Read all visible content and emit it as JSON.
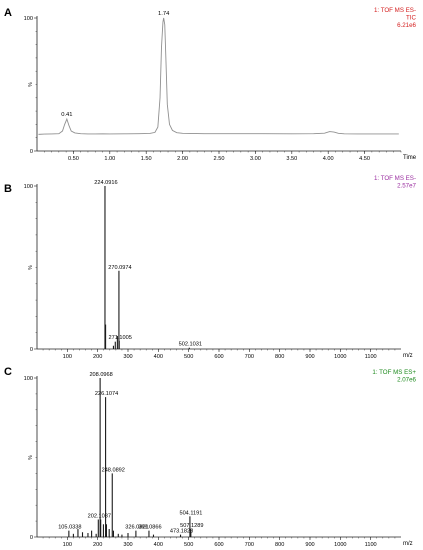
{
  "colors": {
    "chromatogram": "#909090",
    "spectrum": "#1a1a1a",
    "axis": "#222222",
    "tic_info": "#d42020",
    "esneg_info": "#9b2fa0",
    "espos_info": "#1e8a1e"
  },
  "chart_data": [
    {
      "type": "line",
      "panel_label": "A",
      "info_lines": [
        "1: TOF MS ES-",
        "TIC",
        "6.21e6"
      ],
      "xlabel": "Time",
      "ylabel": "%",
      "xlim": [
        0.0,
        5.0
      ],
      "ylim": [
        0,
        100
      ],
      "xticks": [
        0.5,
        1.0,
        1.5,
        2.0,
        2.5,
        3.0,
        3.5,
        4.0,
        4.5
      ],
      "xtick_labels": [
        "0.50",
        "1.00",
        "1.50",
        "2.00",
        "2.50",
        "3.00",
        "3.50",
        "4.00",
        "4.50"
      ],
      "yticks": [
        0,
        100
      ],
      "ytick_labels": [
        "0",
        "100"
      ],
      "x": [
        0.02,
        0.1,
        0.2,
        0.3,
        0.35,
        0.38,
        0.41,
        0.44,
        0.47,
        0.52,
        0.6,
        0.7,
        0.8,
        0.9,
        1.0,
        1.2,
        1.4,
        1.55,
        1.62,
        1.66,
        1.69,
        1.71,
        1.73,
        1.74,
        1.755,
        1.77,
        1.79,
        1.82,
        1.86,
        1.92,
        2.0,
        2.3,
        2.7,
        3.1,
        3.5,
        3.8,
        3.95,
        4.02,
        4.08,
        4.14,
        4.22,
        4.4,
        4.7,
        4.97
      ],
      "y": [
        12.5,
        12.7,
        12.8,
        13.0,
        15.0,
        20.0,
        24.0,
        19.0,
        15.0,
        13.6,
        13.0,
        12.8,
        12.8,
        12.9,
        12.8,
        12.9,
        13.0,
        13.2,
        14.0,
        18.0,
        40.0,
        78.0,
        97.0,
        100.0,
        95.0,
        70.0,
        35.0,
        20.0,
        15.5,
        13.8,
        13.3,
        13.0,
        13.0,
        13.0,
        12.9,
        13.0,
        13.4,
        14.6,
        14.2,
        13.3,
        12.9,
        12.8,
        12.8,
        12.8
      ],
      "peak_labels": [
        {
          "x": 0.41,
          "y": 24,
          "text": "0.41"
        },
        {
          "x": 1.74,
          "y": 100,
          "text": "1.74"
        }
      ]
    },
    {
      "type": "bar",
      "panel_label": "B",
      "info_lines": [
        "1: TOF MS ES-",
        "2.57e7"
      ],
      "xlabel": "m/z",
      "ylabel": "%",
      "xlim": [
        0,
        1200
      ],
      "ylim": [
        0,
        100
      ],
      "xticks": [
        100,
        200,
        300,
        400,
        500,
        600,
        700,
        800,
        900,
        1000,
        1100
      ],
      "xtick_labels": [
        "100",
        "200",
        "300",
        "400",
        "500",
        "600",
        "700",
        "800",
        "900",
        "1000",
        "1100"
      ],
      "yticks": [
        0,
        100
      ],
      "ytick_labels": [
        "0",
        "100"
      ],
      "peaks": [
        {
          "mz": 224.0916,
          "value": 100,
          "label": "224.0916"
        },
        {
          "mz": 226.09,
          "value": 15
        },
        {
          "mz": 252.0,
          "value": 2
        },
        {
          "mz": 258.05,
          "value": 4.5
        },
        {
          "mz": 265.0,
          "value": 8
        },
        {
          "mz": 270.0974,
          "value": 48,
          "label": "270.0974"
        },
        {
          "mz": 271.1005,
          "value": 5,
          "label": "271.1005"
        },
        {
          "mz": 502.1031,
          "value": 0.8,
          "label": "502.1031"
        }
      ]
    },
    {
      "type": "bar",
      "panel_label": "C",
      "info_lines": [
        "1: TOF MS ES+",
        "2.07e6"
      ],
      "xlabel": "m/z",
      "ylabel": "%",
      "xlim": [
        0,
        1200
      ],
      "ylim": [
        0,
        100
      ],
      "xticks": [
        100,
        200,
        300,
        400,
        500,
        600,
        700,
        800,
        900,
        1000,
        1100
      ],
      "xtick_labels": [
        "100",
        "200",
        "300",
        "400",
        "500",
        "600",
        "700",
        "800",
        "900",
        "1000",
        "1100"
      ],
      "yticks": [
        0,
        100
      ],
      "ytick_labels": [
        "0",
        "100"
      ],
      "peaks": [
        {
          "mz": 105.0338,
          "value": 4,
          "label": "105.0338"
        },
        {
          "mz": 120.0,
          "value": 2
        },
        {
          "mz": 135.0,
          "value": 5
        },
        {
          "mz": 150.0,
          "value": 3
        },
        {
          "mz": 168.0,
          "value": 2.5
        },
        {
          "mz": 180.0,
          "value": 4
        },
        {
          "mz": 195.0,
          "value": 2
        },
        {
          "mz": 202.1087,
          "value": 11,
          "label": "202.1087"
        },
        {
          "mz": 208.0968,
          "value": 100,
          "label": "208.0968"
        },
        {
          "mz": 210.0,
          "value": 11
        },
        {
          "mz": 219.0,
          "value": 8
        },
        {
          "mz": 226.1074,
          "value": 88,
          "label": "226.1074"
        },
        {
          "mz": 229.0,
          "value": 8
        },
        {
          "mz": 238.0,
          "value": 5
        },
        {
          "mz": 248.0892,
          "value": 40,
          "label": "248.0892"
        },
        {
          "mz": 252.0,
          "value": 4
        },
        {
          "mz": 268.0,
          "value": 2
        },
        {
          "mz": 280.0,
          "value": 1.5
        },
        {
          "mz": 300.0,
          "value": 2.5
        },
        {
          "mz": 326.0321,
          "value": 4,
          "label": "326.0321"
        },
        {
          "mz": 369.0866,
          "value": 4,
          "label": "369.0866"
        },
        {
          "mz": 384.0,
          "value": 1.5
        },
        {
          "mz": 473.1828,
          "value": 1.5,
          "label": "473.1828"
        },
        {
          "mz": 504.1191,
          "value": 13,
          "label": "504.1191"
        },
        {
          "mz": 507.1289,
          "value": 5,
          "label": "507.1289"
        }
      ]
    }
  ]
}
